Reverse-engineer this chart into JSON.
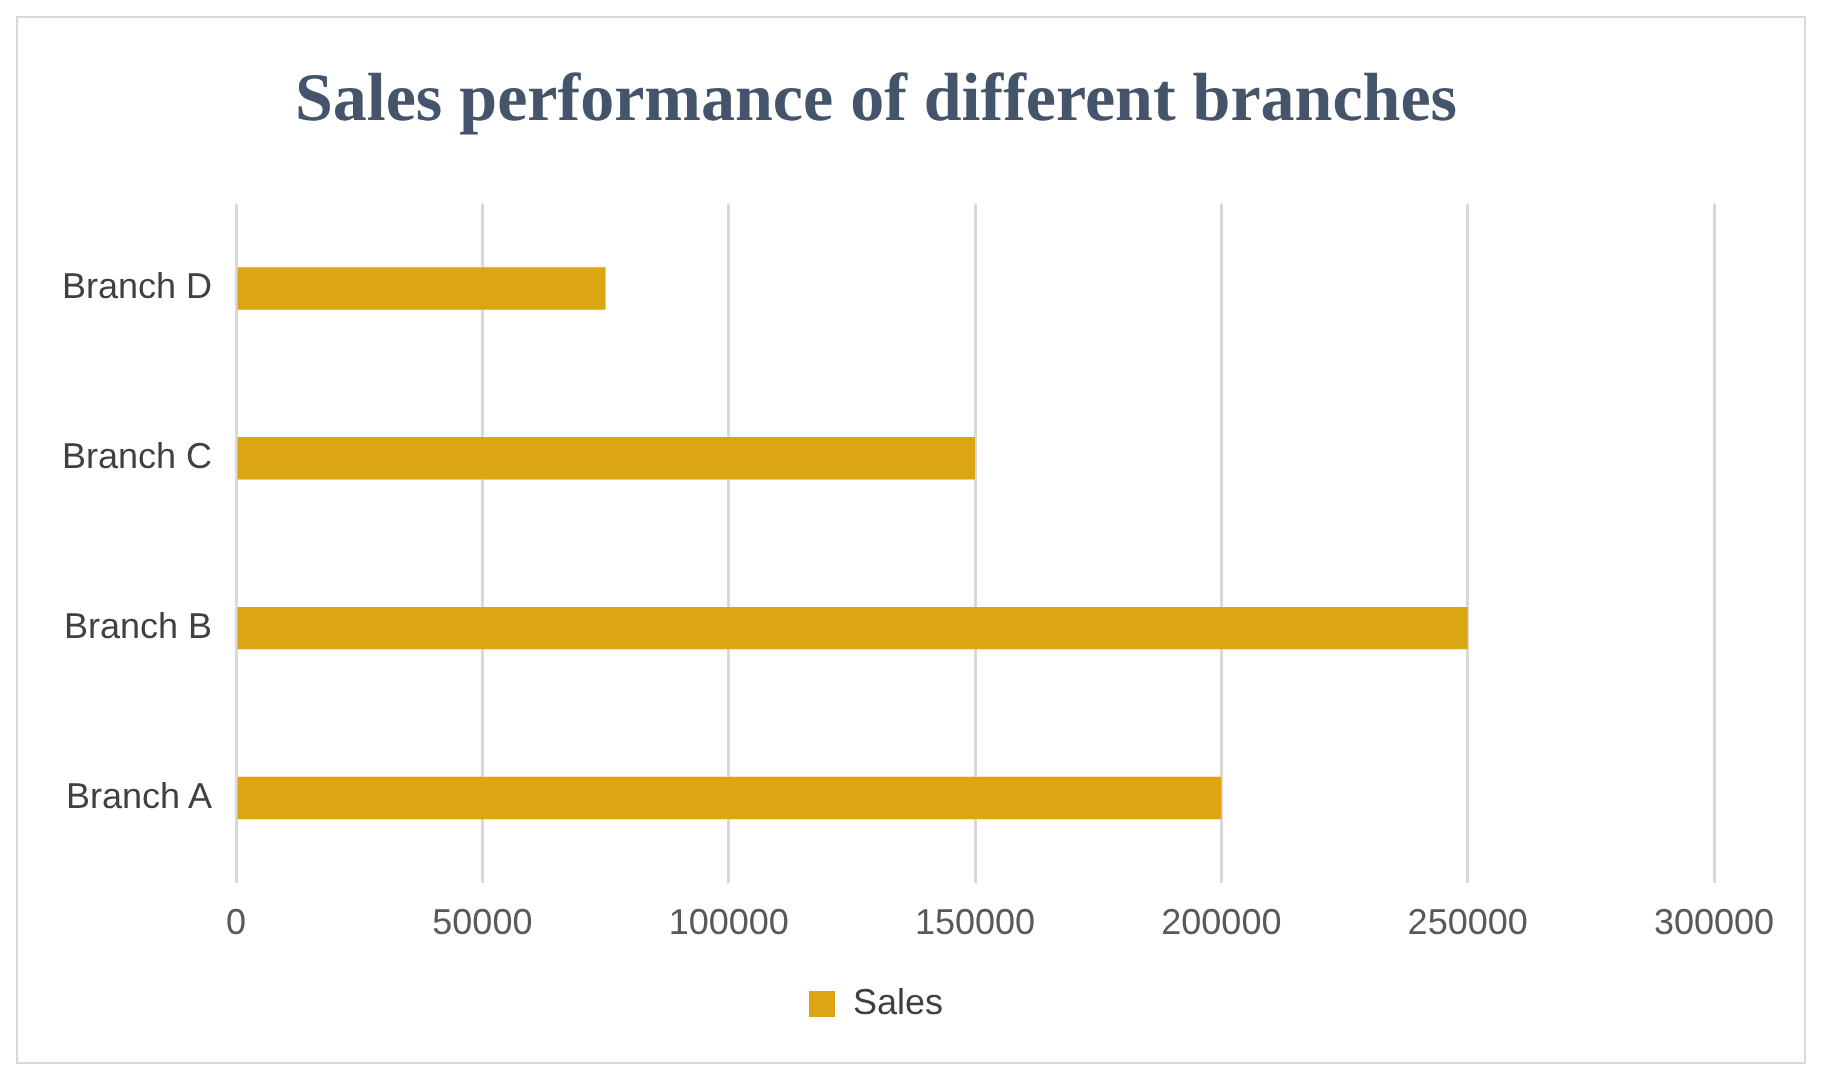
{
  "chart_data": {
    "type": "bar",
    "orientation": "horizontal",
    "title": "Sales performance of different branches",
    "categories": [
      "Branch D",
      "Branch C",
      "Branch B",
      "Branch A"
    ],
    "series": [
      {
        "name": "Sales",
        "color": "#dba514",
        "values": [
          75000,
          150000,
          250000,
          200000
        ]
      }
    ],
    "xlim": [
      0,
      300000
    ],
    "xticks": [
      0,
      50000,
      100000,
      150000,
      200000,
      250000,
      300000
    ],
    "grid": "x",
    "legend": "bottom"
  }
}
